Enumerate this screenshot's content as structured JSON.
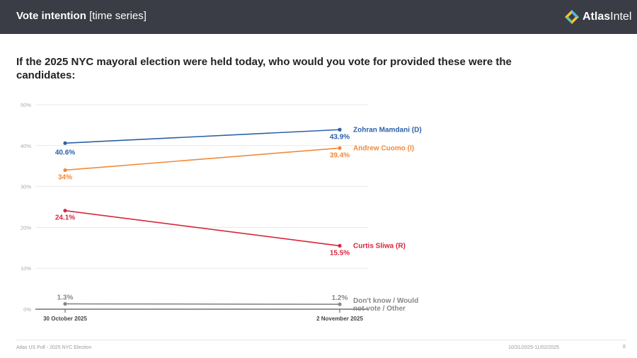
{
  "header": {
    "title_bold": "Vote intention",
    "title_light": "[time series]",
    "logo_text_bold": "Atlas",
    "logo_text_light": "Intel"
  },
  "question": "If the 2025 NYC mayoral election were held today, who would you vote for provided these were the candidates:",
  "chart_data": {
    "type": "line",
    "categories": [
      "30 October 2025",
      "2 November 2025"
    ],
    "ylim": [
      0,
      50
    ],
    "yticks": [
      0,
      10,
      20,
      30,
      40,
      50
    ],
    "ytick_labels": [
      "0%",
      "10%",
      "20%",
      "30%",
      "40%",
      "50%"
    ],
    "grid": true,
    "series": [
      {
        "name": "Zohran Mamdani (D)",
        "values": [
          40.6,
          43.9
        ],
        "labels": [
          "40.6%",
          "43.9%"
        ],
        "color": "#2b5fa8"
      },
      {
        "name": "Andrew Cuomo (I)",
        "values": [
          34,
          39.4
        ],
        "labels": [
          "34%",
          "39.4%"
        ],
        "color": "#ef8a3c"
      },
      {
        "name": "Curtis Sliwa (R)",
        "values": [
          24.1,
          15.5
        ],
        "labels": [
          "24.1%",
          "15.5%"
        ],
        "color": "#d7263d"
      },
      {
        "name": "Don't know / Would not vote / Other",
        "name_lines": [
          "Don't know / Would",
          "not vote / Other"
        ],
        "values": [
          1.3,
          1.2
        ],
        "labels": [
          "1.3%",
          "1.2%"
        ],
        "color": "#888888"
      }
    ]
  },
  "footer": {
    "source": "Atlas US Poll - 2025 NYC Election",
    "dates": "10/31/2025-11/02/2025",
    "page": "8"
  }
}
